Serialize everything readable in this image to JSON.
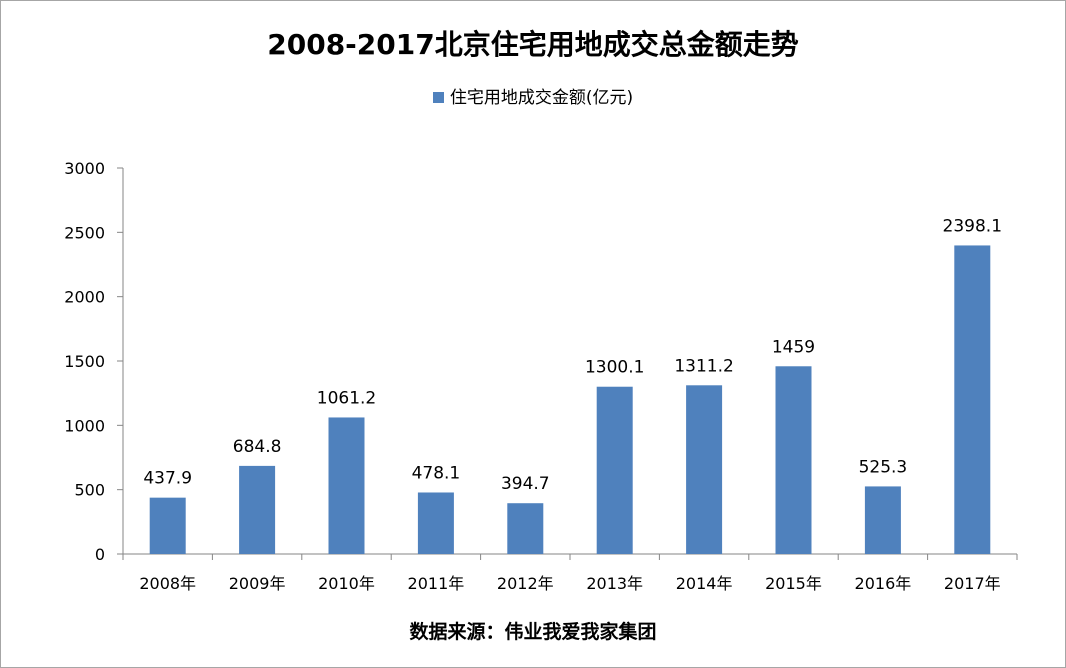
{
  "chart_data": {
    "type": "bar",
    "title": "2008-2017北京住宅用地成交总金额走势",
    "categories": [
      "2008年",
      "2009年",
      "2010年",
      "2011年",
      "2012年",
      "2013年",
      "2014年",
      "2015年",
      "2016年",
      "2017年"
    ],
    "series": [
      {
        "name": "住宅用地成交金额(亿元)",
        "values": [
          437.9,
          684.8,
          1061.2,
          478.1,
          394.7,
          1300.1,
          1311.2,
          1459,
          525.3,
          2398.1
        ],
        "labels": [
          "437.9",
          "684.8",
          "1061.2",
          "478.1",
          "394.7",
          "1300.1",
          "1311.2",
          "1459",
          "525.3",
          "2398.1"
        ],
        "color": "#4f81bd"
      }
    ],
    "ylim": [
      0,
      3000
    ],
    "yticks": [
      0,
      500,
      1000,
      1500,
      2000,
      2500,
      3000
    ],
    "grid": false,
    "legend_position": "top"
  },
  "source_note": "数据来源：伟业我爱我家集团"
}
